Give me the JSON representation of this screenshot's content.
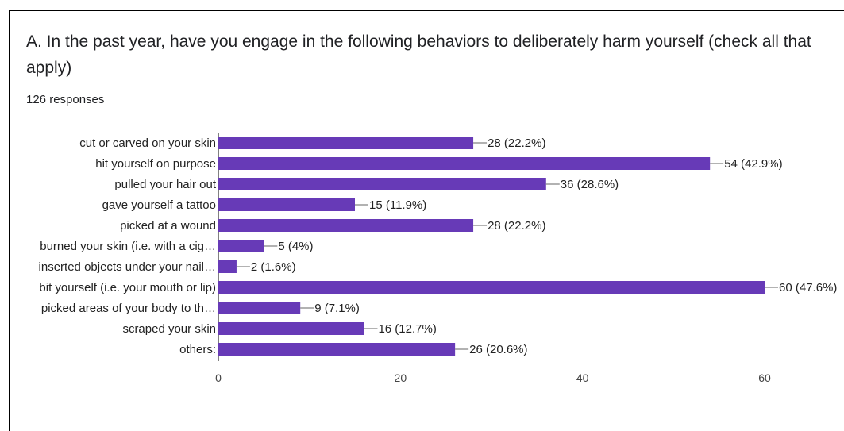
{
  "question": {
    "title": "A. In the past year, have you engage in the following behaviors to deliberately harm yourself (check all that apply)",
    "responses": "126 responses"
  },
  "colors": {
    "bar": "#673ab7",
    "axis": "#000000",
    "gridline": "#cccccc",
    "label": "#222222",
    "tick": "#444444"
  },
  "chart_data": {
    "type": "bar",
    "orientation": "horizontal",
    "categories": [
      "cut or carved on your skin",
      "hit yourself on purpose",
      "pulled your hair out",
      "gave yourself a tattoo",
      "picked at a wound",
      "burned your skin (i.e. with a cig…",
      "inserted objects under your nail…",
      "bit yourself (i.e. your mouth or lip)",
      "picked areas of your body to th…",
      "scraped your skin",
      "others:"
    ],
    "values": [
      28,
      54,
      36,
      15,
      28,
      5,
      2,
      60,
      9,
      16,
      26
    ],
    "data_labels": [
      "28 (22.2%)",
      "54 (42.9%)",
      "36 (28.6%)",
      "15 (11.9%)",
      "28 (22.2%)",
      "5 (4%)",
      "2 (1.6%)",
      "60 (47.6%)",
      "9 (7.1%)",
      "16 (12.7%)",
      "26 (20.6%)"
    ],
    "xticks": [
      "0",
      "20",
      "40",
      "60"
    ],
    "xlim": [
      0,
      60
    ],
    "grid": false
  }
}
